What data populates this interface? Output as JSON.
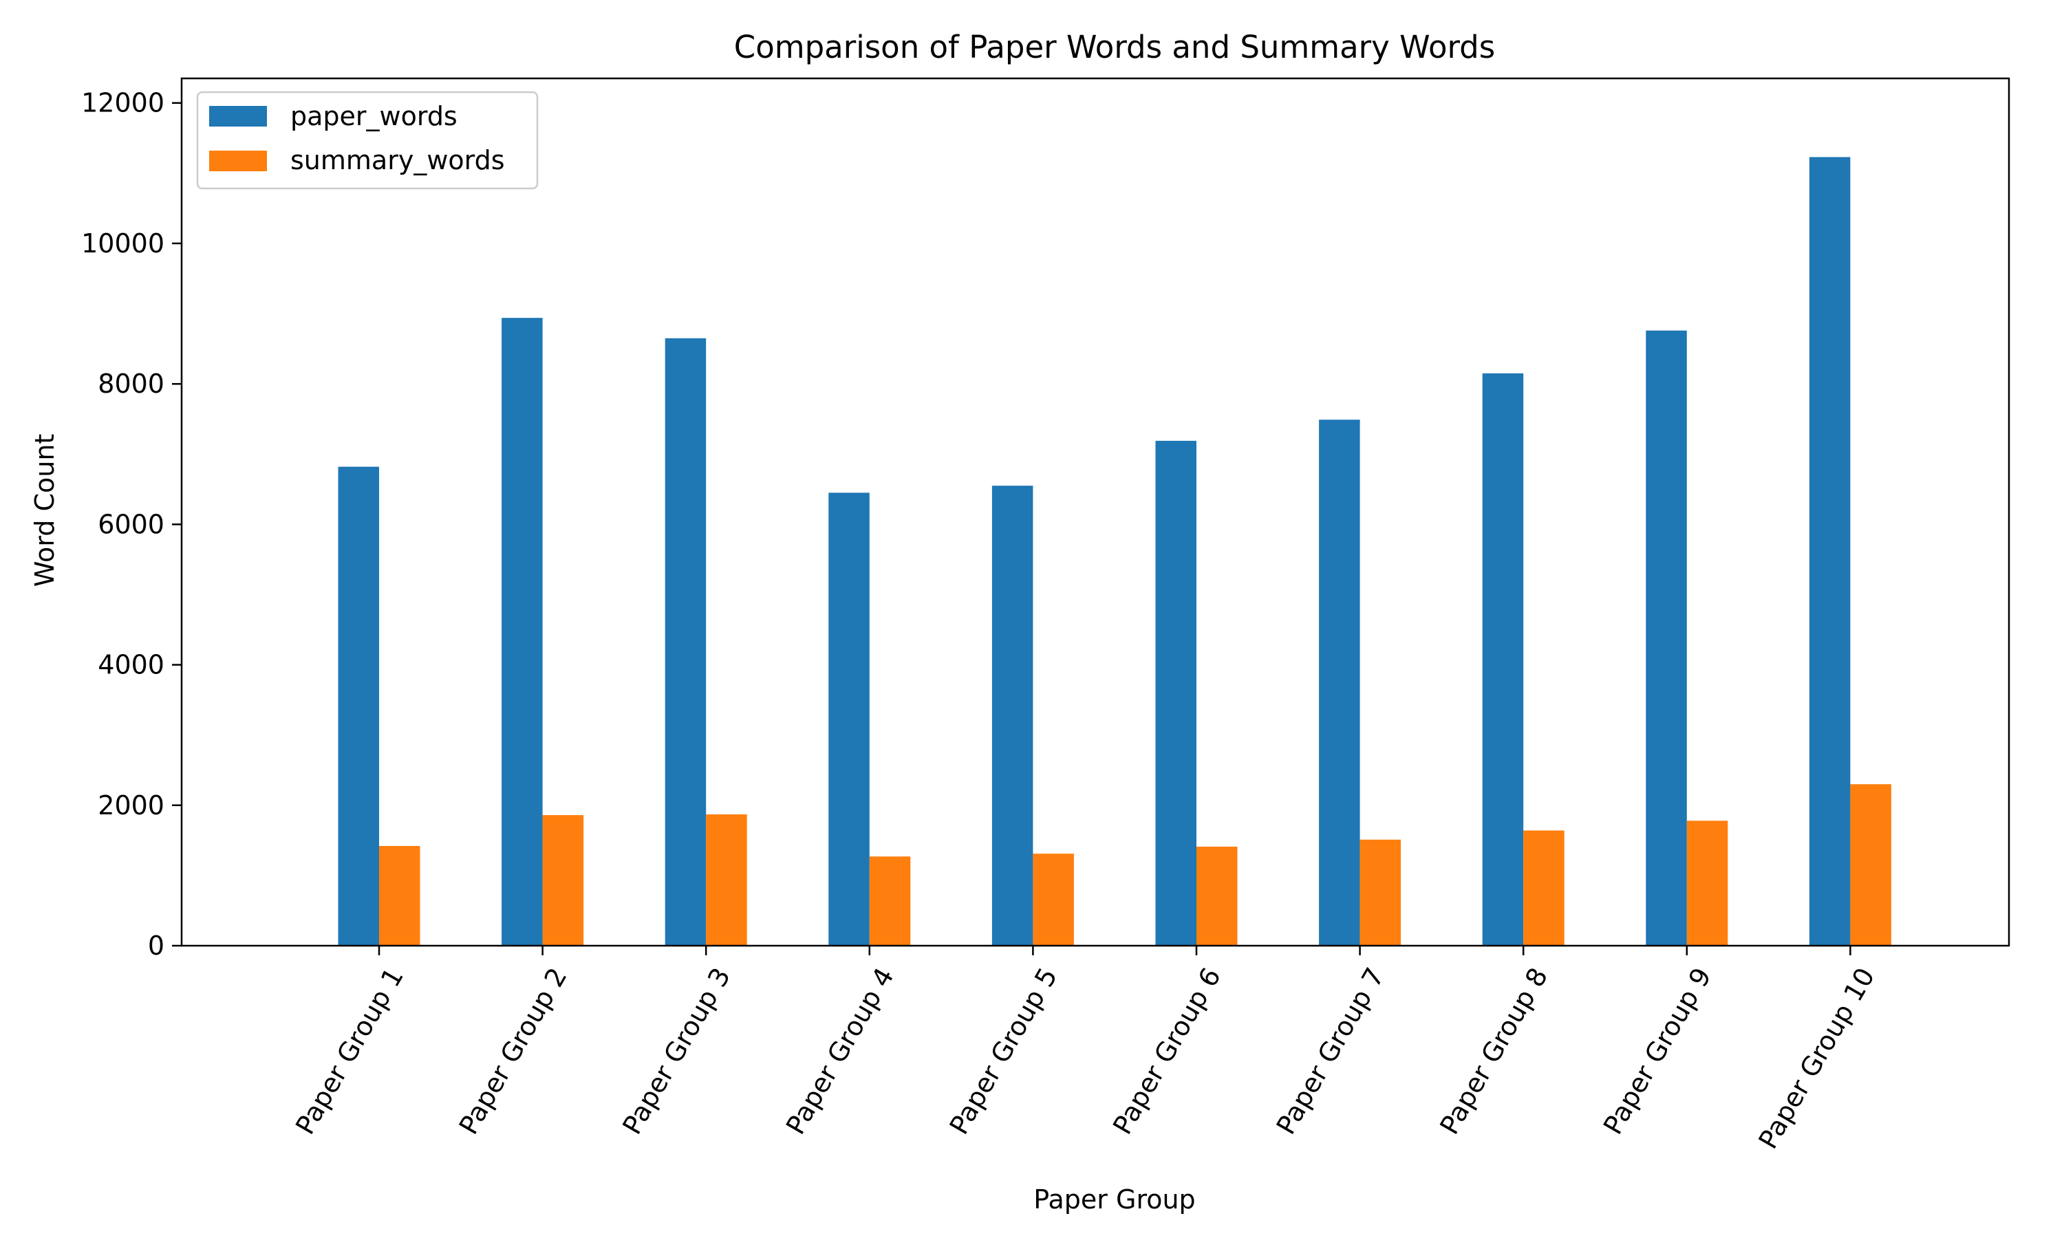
{
  "chart_data": {
    "type": "bar",
    "title": "Comparison of Paper Words and Summary Words",
    "xlabel": "Paper Group",
    "ylabel": "Word Count",
    "categories": [
      "Paper Group 1",
      "Paper Group 2",
      "Paper Group 3",
      "Paper Group 4",
      "Paper Group 5",
      "Paper Group 6",
      "Paper Group 7",
      "Paper Group 8",
      "Paper Group 9",
      "Paper Group 10"
    ],
    "series": [
      {
        "name": "paper_words",
        "color": "#1f77b4",
        "values": [
          6820,
          8940,
          8650,
          6450,
          6550,
          7190,
          7490,
          8150,
          8760,
          11230
        ]
      },
      {
        "name": "summary_words",
        "color": "#ff7f0e",
        "values": [
          1420,
          1860,
          1870,
          1270,
          1310,
          1410,
          1510,
          1640,
          1780,
          2300
        ]
      }
    ],
    "ylim": [
      0,
      12350
    ],
    "yticks": [
      0,
      2000,
      4000,
      6000,
      8000,
      10000,
      12000
    ],
    "ytick_labels": [
      "0",
      "2000",
      "4000",
      "6000",
      "8000",
      "10000",
      "12000"
    ],
    "legend_position": "upper-left",
    "grid": false
  }
}
